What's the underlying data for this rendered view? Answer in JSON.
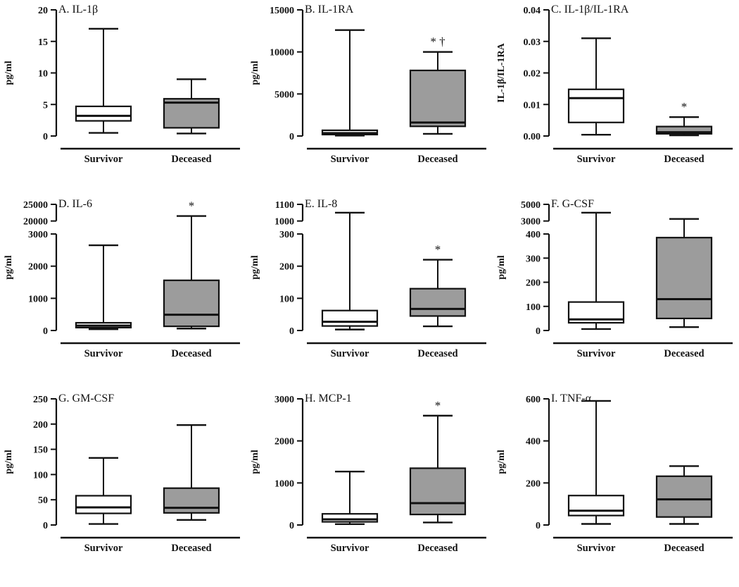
{
  "style": {
    "survivor_fill": "#ffffff",
    "deceased_fill": "#9c9c9c",
    "line_color": "#111111",
    "background": "#ffffff"
  },
  "categories": [
    "Survivor",
    "Deceased"
  ],
  "chart_data": [
    {
      "type": "box",
      "panel": "A",
      "title": "A. IL-1β",
      "ylabel": "pg/ml",
      "categories": [
        "Survivor",
        "Deceased"
      ],
      "axis": {
        "segments": [
          {
            "min": 0,
            "max": 20,
            "frac": [
              0,
              1
            ],
            "ticks": [
              {
                "v": 0,
                "label": "0"
              },
              {
                "v": 5,
                "label": "5"
              },
              {
                "v": 10,
                "label": "10"
              },
              {
                "v": 15,
                "label": "15"
              },
              {
                "v": 20,
                "label": "20"
              }
            ]
          }
        ]
      },
      "boxes": [
        {
          "group": "Survivor",
          "min": 0.5,
          "q1": 2.4,
          "median": 3.2,
          "q3": 4.7,
          "max": 17,
          "marker": ""
        },
        {
          "group": "Deceased",
          "min": 0.4,
          "q1": 1.3,
          "median": 5.3,
          "q3": 5.9,
          "max": 9,
          "marker": ""
        }
      ]
    },
    {
      "type": "box",
      "panel": "B",
      "title": "B. IL-1RA",
      "ylabel": "pg/ml",
      "categories": [
        "Survivor",
        "Deceased"
      ],
      "axis": {
        "segments": [
          {
            "min": 0,
            "max": 15000,
            "frac": [
              0,
              1
            ],
            "ticks": [
              {
                "v": 0,
                "label": "0"
              },
              {
                "v": 5000,
                "label": "5000"
              },
              {
                "v": 10000,
                "label": "10000"
              },
              {
                "v": 15000,
                "label": "15000"
              }
            ]
          }
        ]
      },
      "boxes": [
        {
          "group": "Survivor",
          "min": 50,
          "q1": 170,
          "median": 350,
          "q3": 680,
          "max": 12600,
          "marker": ""
        },
        {
          "group": "Deceased",
          "min": 260,
          "q1": 1150,
          "median": 1600,
          "q3": 7800,
          "max": 10000,
          "marker": "* †"
        }
      ]
    },
    {
      "type": "box",
      "panel": "C",
      "title": "C. IL-1β/IL-1RA",
      "ylabel": "IL-1β/IL-1RA",
      "categories": [
        "Survivor",
        "Deceased"
      ],
      "axis": {
        "segments": [
          {
            "min": 0,
            "max": 0.04,
            "frac": [
              0,
              1
            ],
            "ticks": [
              {
                "v": 0,
                "label": "0.00"
              },
              {
                "v": 0.01,
                "label": "0.01"
              },
              {
                "v": 0.02,
                "label": "0.02"
              },
              {
                "v": 0.03,
                "label": "0.03"
              },
              {
                "v": 0.04,
                "label": "0.04"
              }
            ]
          }
        ]
      },
      "boxes": [
        {
          "group": "Survivor",
          "min": 0.0004,
          "q1": 0.0043,
          "median": 0.012,
          "q3": 0.0148,
          "max": 0.031,
          "marker": ""
        },
        {
          "group": "Deceased",
          "min": 0.0002,
          "q1": 0.0007,
          "median": 0.0012,
          "q3": 0.003,
          "max": 0.006,
          "marker": "*"
        }
      ]
    },
    {
      "type": "box",
      "panel": "D",
      "title": "D. IL-6",
      "ylabel": "pg/ml",
      "categories": [
        "Survivor",
        "Deceased"
      ],
      "axis": {
        "broken": true,
        "segments": [
          {
            "min": 0,
            "max": 3000,
            "frac": [
              0,
              0.765
            ],
            "ticks": [
              {
                "v": 0,
                "label": "0"
              },
              {
                "v": 1000,
                "label": "1000"
              },
              {
                "v": 2000,
                "label": "2000"
              },
              {
                "v": 3000,
                "label": "3000"
              }
            ]
          },
          {
            "min": 20000,
            "max": 25000,
            "frac": [
              0.868,
              1
            ],
            "ticks": [
              {
                "v": 20000,
                "label": "20000"
              },
              {
                "v": 25000,
                "label": "25000"
              }
            ]
          }
        ]
      },
      "boxes": [
        {
          "group": "Survivor",
          "min": 40,
          "q1": 90,
          "median": 150,
          "q3": 240,
          "max": 2650,
          "marker": ""
        },
        {
          "group": "Deceased",
          "min": 60,
          "q1": 130,
          "median": 490,
          "q3": 1560,
          "max": 21500,
          "marker": "*"
        }
      ]
    },
    {
      "type": "box",
      "panel": "E",
      "title": "E. IL-8",
      "ylabel": "pg/ml",
      "categories": [
        "Survivor",
        "Deceased"
      ],
      "axis": {
        "broken": true,
        "segments": [
          {
            "min": 0,
            "max": 300,
            "frac": [
              0,
              0.765
            ],
            "ticks": [
              {
                "v": 0,
                "label": "0"
              },
              {
                "v": 100,
                "label": "100"
              },
              {
                "v": 200,
                "label": "200"
              },
              {
                "v": 300,
                "label": "300"
              }
            ]
          },
          {
            "min": 1000,
            "max": 1100,
            "frac": [
              0.868,
              1
            ],
            "ticks": [
              {
                "v": 1000,
                "label": "1000"
              },
              {
                "v": 1100,
                "label": "1100"
              }
            ]
          }
        ]
      },
      "boxes": [
        {
          "group": "Survivor",
          "min": 3,
          "q1": 14,
          "median": 27,
          "q3": 62,
          "max": 1050,
          "marker": ""
        },
        {
          "group": "Deceased",
          "min": 13,
          "q1": 45,
          "median": 67,
          "q3": 130,
          "max": 220,
          "marker": "*"
        }
      ]
    },
    {
      "type": "box",
      "panel": "F",
      "title": "F. G-CSF",
      "ylabel": "pg/ml",
      "categories": [
        "Survivor",
        "Deceased"
      ],
      "axis": {
        "broken": true,
        "segments": [
          {
            "min": 0,
            "max": 400,
            "frac": [
              0,
              0.765
            ],
            "ticks": [
              {
                "v": 0,
                "label": "0"
              },
              {
                "v": 100,
                "label": "100"
              },
              {
                "v": 200,
                "label": "200"
              },
              {
                "v": 300,
                "label": "300"
              },
              {
                "v": 400,
                "label": "400"
              }
            ]
          },
          {
            "min": 3000,
            "max": 5000,
            "frac": [
              0.868,
              1
            ],
            "ticks": [
              {
                "v": 3000,
                "label": "3000"
              },
              {
                "v": 5000,
                "label": "5000"
              }
            ]
          }
        ]
      },
      "boxes": [
        {
          "group": "Survivor",
          "min": 6,
          "q1": 32,
          "median": 46,
          "q3": 118,
          "max": 4000,
          "marker": ""
        },
        {
          "group": "Deceased",
          "min": 14,
          "q1": 50,
          "median": 130,
          "q3": 385,
          "max": 3250,
          "marker": ""
        }
      ]
    },
    {
      "type": "box",
      "panel": "G",
      "title": "G. GM-CSF",
      "ylabel": "pg/ml",
      "categories": [
        "Survivor",
        "Deceased"
      ],
      "axis": {
        "segments": [
          {
            "min": 0,
            "max": 250,
            "frac": [
              0,
              1
            ],
            "ticks": [
              {
                "v": 0,
                "label": "0"
              },
              {
                "v": 50,
                "label": "50"
              },
              {
                "v": 100,
                "label": "100"
              },
              {
                "v": 150,
                "label": "150"
              },
              {
                "v": 200,
                "label": "200"
              },
              {
                "v": 250,
                "label": "250"
              }
            ]
          }
        ]
      },
      "boxes": [
        {
          "group": "Survivor",
          "min": 2,
          "q1": 23,
          "median": 35,
          "q3": 58,
          "max": 133,
          "marker": ""
        },
        {
          "group": "Deceased",
          "min": 10,
          "q1": 24,
          "median": 34,
          "q3": 73,
          "max": 198,
          "marker": ""
        }
      ]
    },
    {
      "type": "box",
      "panel": "H",
      "title": "H. MCP-1",
      "ylabel": "pg/ml",
      "categories": [
        "Survivor",
        "Deceased"
      ],
      "axis": {
        "segments": [
          {
            "min": 0,
            "max": 3000,
            "frac": [
              0,
              1
            ],
            "ticks": [
              {
                "v": 0,
                "label": "0"
              },
              {
                "v": 1000,
                "label": "1000"
              },
              {
                "v": 2000,
                "label": "2000"
              },
              {
                "v": 3000,
                "label": "3000"
              }
            ]
          }
        ]
      },
      "boxes": [
        {
          "group": "Survivor",
          "min": 20,
          "q1": 75,
          "median": 135,
          "q3": 265,
          "max": 1270,
          "marker": ""
        },
        {
          "group": "Deceased",
          "min": 60,
          "q1": 250,
          "median": 520,
          "q3": 1350,
          "max": 2600,
          "marker": "*"
        }
      ]
    },
    {
      "type": "box",
      "panel": "I",
      "title": "I. TNF-α",
      "ylabel": "pg/ml",
      "categories": [
        "Survivor",
        "Deceased"
      ],
      "axis": {
        "segments": [
          {
            "min": 0,
            "max": 600,
            "frac": [
              0,
              1
            ],
            "ticks": [
              {
                "v": 0,
                "label": "0"
              },
              {
                "v": 200,
                "label": "200"
              },
              {
                "v": 400,
                "label": "400"
              },
              {
                "v": 600,
                "label": "600"
              }
            ]
          }
        ]
      },
      "boxes": [
        {
          "group": "Survivor",
          "min": 5,
          "q1": 45,
          "median": 68,
          "q3": 140,
          "max": 590,
          "marker": ""
        },
        {
          "group": "Deceased",
          "min": 5,
          "q1": 38,
          "median": 122,
          "q3": 232,
          "max": 280,
          "marker": ""
        }
      ]
    }
  ]
}
